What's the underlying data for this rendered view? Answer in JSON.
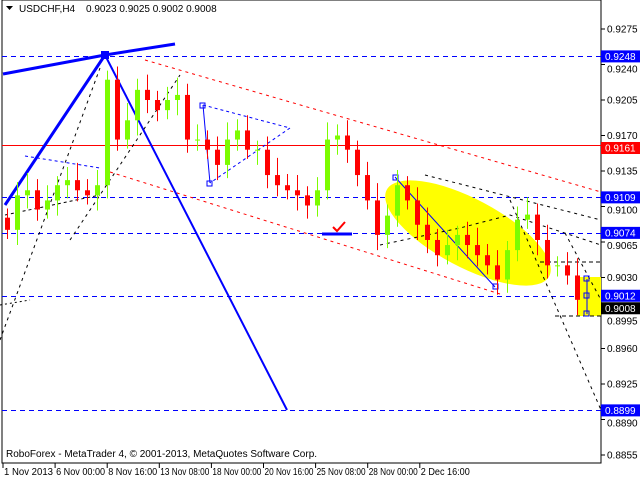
{
  "header": {
    "symbol": "USDCHF,H4",
    "ohlc": "0.9023 0.9025 0.9002 0.9008"
  },
  "footer": {
    "copyright": "RoboForex - MetaTrader 4, © 2001-2013, MetaQuotes Software Corp."
  },
  "colors": {
    "bull": "#7cfc00",
    "bear": "#ff0000",
    "level": "#0000ff",
    "resistance": "#ff0000",
    "target_zone": "#ffff00"
  },
  "chart_data": {
    "type": "candlestick",
    "title": "USDCHF,H4",
    "ylim": [
      0.884,
      0.9302
    ],
    "y_ticks": [
      "0.9275",
      "0.9240",
      "0.9205",
      "0.9170",
      "0.9135",
      "0.9100",
      "0.9065",
      "0.9030",
      "0.8995",
      "0.8960",
      "0.8925",
      "0.8890",
      "0.8855"
    ],
    "x_ticks": [
      "1 Nov 2013",
      "6 Nov 00:00",
      "8 Nov 16:00",
      "13 Nov 08:00",
      "18 Nov 00:00",
      "20 Nov 16:00",
      "25 Nov 08:00",
      "28 Nov 00:00",
      "2 Dec 16:00"
    ],
    "close": [
      0.9077,
      0.9111,
      0.9116,
      0.9097,
      0.9106,
      0.9121,
      0.9126,
      0.9116,
      0.9111,
      0.9121,
      0.9225,
      0.9166,
      0.9185,
      0.9215,
      0.9205,
      0.9195,
      0.9205,
      0.921,
      0.9166,
      0.9166,
      0.9156,
      0.9141,
      0.9166,
      0.9175,
      0.9156,
      0.9156,
      0.9131,
      0.9121,
      0.9116,
      0.9111,
      0.9101,
      0.9116,
      0.9166,
      0.917,
      0.9156,
      0.9131,
      0.9106,
      0.9072,
      0.9091,
      0.9121,
      0.9106,
      0.9082,
      0.9067,
      0.9052,
      0.9062,
      0.9072,
      0.9062,
      0.9052,
      0.9042,
      0.9028,
      0.9057,
      0.9087,
      0.9092,
      0.9067,
      0.9042,
      0.9042,
      0.9032,
      0.9008
    ],
    "levels": [
      {
        "price": "0.9248",
        "style": "dashed",
        "color": "#0000ff"
      },
      {
        "price": "0.9161",
        "style": "solid",
        "color": "#ff0000"
      },
      {
        "price": "0.9109",
        "style": "dashed",
        "color": "#0000ff"
      },
      {
        "price": "0.9074",
        "style": "dashed",
        "color": "#0000ff"
      },
      {
        "price": "0.9012",
        "style": "dashed",
        "color": "#0000ff"
      },
      {
        "price": "0.8899",
        "style": "dashed",
        "color": "#0000ff"
      }
    ],
    "current_price": "0.9008"
  }
}
